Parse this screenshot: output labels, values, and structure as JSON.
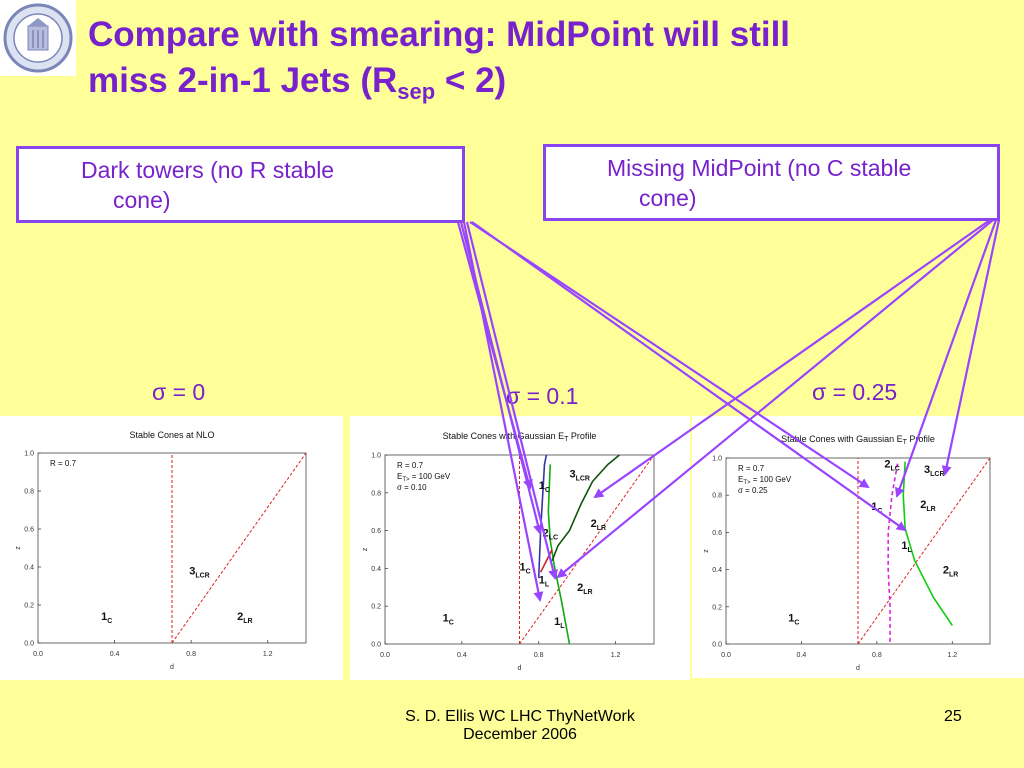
{
  "slide": {
    "title_line1": "Compare with smearing:  MidPoint will still",
    "title_line2": "miss 2-in-1 Jets  (R",
    "title_sub": "sep",
    "title_end": " < 2)",
    "box_left_line1": "Dark towers (no R stable",
    "box_left_line2": "cone)",
    "box_right_line1": "Missing MidPoint (no C stable",
    "box_right_line2": "cone)",
    "sigma_labels": [
      "σ = 0",
      "σ = 0.1",
      "σ = 0.25"
    ],
    "footer_line1": "S. D. Ellis   WC LHC ThyNetWork",
    "footer_line2": "December 2006",
    "page_number": "25"
  },
  "colors": {
    "accent": "#7722cc",
    "arrow": "#9944ff",
    "background": "#ffff99"
  },
  "chart_data": [
    {
      "type": "line",
      "title": "Stable Cones at NLO",
      "xlabel": "d",
      "ylabel": "z",
      "xlim": [
        0,
        1.4
      ],
      "ylim": [
        0,
        1.0
      ],
      "xticks": [
        "0.0",
        "0.4",
        "0.8",
        "1.2"
      ],
      "yticks": [
        "0.0",
        "0.2",
        "0.4",
        "0.6",
        "0.8",
        "1.0"
      ],
      "params": [
        "R = 0.7"
      ],
      "region_labels": [
        {
          "main": "1",
          "sub": "C",
          "x": 0.33,
          "y": 0.12
        },
        {
          "main": "3",
          "sub": "LCR",
          "x": 0.79,
          "y": 0.36
        },
        {
          "main": "2",
          "sub": "LR",
          "x": 1.04,
          "y": 0.12
        }
      ],
      "series": [
        {
          "kind": "vline",
          "color": "#dd2222",
          "x": 0.7
        },
        {
          "kind": "line",
          "color": "#dd2222",
          "points": [
            [
              0.7,
              0.0
            ],
            [
              1.4,
              1.0
            ]
          ]
        }
      ]
    },
    {
      "type": "line",
      "title": "Stable Cones with Gaussian E",
      "title_sub": "T",
      "title_end": " Profile",
      "xlabel": "d",
      "ylabel": "z",
      "xlim": [
        0,
        1.4
      ],
      "ylim": [
        0,
        1.0
      ],
      "xticks": [
        "0.0",
        "0.4",
        "0.8",
        "1.2"
      ],
      "yticks": [
        "0.0",
        "0.2",
        "0.4",
        "0.6",
        "0.8",
        "1.0"
      ],
      "params": [
        "R = 0.7",
        "E<sub>T&gt;</sub> = 100 GeV",
        "σ = 0.10"
      ],
      "region_labels": [
        {
          "main": "1",
          "sub": "C",
          "x": 0.3,
          "y": 0.12
        },
        {
          "main": "1",
          "sub": "C",
          "x": 0.8,
          "y": 0.82
        },
        {
          "main": "3",
          "sub": "LCR",
          "x": 0.96,
          "y": 0.88
        },
        {
          "main": "2",
          "sub": "LR",
          "x": 1.07,
          "y": 0.62
        },
        {
          "main": "2",
          "sub": "LC",
          "x": 0.82,
          "y": 0.57
        },
        {
          "main": "1",
          "sub": "C",
          "x": 0.7,
          "y": 0.39
        },
        {
          "main": "1",
          "sub": "L",
          "x": 0.8,
          "y": 0.32
        },
        {
          "main": "2",
          "sub": "LR",
          "x": 1.0,
          "y": 0.28
        },
        {
          "main": "1",
          "sub": "L",
          "x": 0.88,
          "y": 0.1
        }
      ],
      "series": [
        {
          "kind": "vline",
          "color": "#dd2222",
          "x": 0.7
        },
        {
          "kind": "line",
          "color": "#dd2222",
          "points": [
            [
              0.7,
              0.0
            ],
            [
              1.4,
              1.0
            ]
          ]
        },
        {
          "kind": "curve",
          "color": "#11aa11",
          "points": [
            [
              0.86,
              0.95
            ],
            [
              0.85,
              0.7
            ],
            [
              0.86,
              0.55
            ],
            [
              0.88,
              0.42
            ],
            [
              0.92,
              0.22
            ],
            [
              0.96,
              0.0
            ]
          ]
        },
        {
          "kind": "curve",
          "color": "#115511",
          "points": [
            [
              0.87,
              0.44
            ],
            [
              0.9,
              0.52
            ],
            [
              0.96,
              0.6
            ],
            [
              1.02,
              0.74
            ],
            [
              1.08,
              0.86
            ],
            [
              1.16,
              0.95
            ],
            [
              1.22,
              1.0
            ]
          ]
        },
        {
          "kind": "curve",
          "color": "#3333aa",
          "points": [
            [
              0.8,
              0.35
            ],
            [
              0.81,
              0.6
            ],
            [
              0.83,
              0.95
            ],
            [
              0.84,
              1.0
            ]
          ]
        },
        {
          "kind": "curve",
          "color": "#cc2222",
          "points": [
            [
              0.81,
              0.38
            ],
            [
              0.84,
              0.44
            ],
            [
              0.87,
              0.5
            ]
          ]
        }
      ]
    },
    {
      "type": "line",
      "title": "Stable Cones with Gaussian E",
      "title_sub": "T",
      "title_end": " Profile",
      "xlabel": "d",
      "ylabel": "z",
      "xlim": [
        0,
        1.4
      ],
      "ylim": [
        0,
        1.0
      ],
      "xticks": [
        "0.0",
        "0.4",
        "0.8",
        "1.2"
      ],
      "yticks": [
        "0.0",
        "0.2",
        "0.4",
        "0.6",
        "0.8",
        "1.0"
      ],
      "params": [
        "R = 0.7",
        "E<sub>T&gt;</sub> = 100 GeV",
        "σ = 0.25"
      ],
      "region_labels": [
        {
          "main": "1",
          "sub": "C",
          "x": 0.33,
          "y": 0.12
        },
        {
          "main": "2",
          "sub": "LC",
          "x": 0.84,
          "y": 0.95
        },
        {
          "main": "3",
          "sub": "LCR",
          "x": 1.05,
          "y": 0.92
        },
        {
          "main": "1",
          "sub": "C",
          "x": 0.77,
          "y": 0.72
        },
        {
          "main": "2",
          "sub": "LR",
          "x": 1.03,
          "y": 0.73
        },
        {
          "main": "1",
          "sub": "L",
          "x": 0.93,
          "y": 0.51
        },
        {
          "main": "2",
          "sub": "LR",
          "x": 1.15,
          "y": 0.38
        }
      ],
      "series": [
        {
          "kind": "vline",
          "color": "#dd2222",
          "x": 0.7
        },
        {
          "kind": "line",
          "color": "#dd2222",
          "points": [
            [
              0.7,
              0.0
            ],
            [
              1.4,
              1.0
            ]
          ]
        },
        {
          "kind": "curve",
          "color": "#11cc11",
          "points": [
            [
              0.95,
              0.98
            ],
            [
              0.94,
              0.8
            ],
            [
              0.95,
              0.62
            ],
            [
              1.0,
              0.45
            ],
            [
              1.1,
              0.25
            ],
            [
              1.2,
              0.1
            ]
          ]
        },
        {
          "kind": "dashed",
          "color": "#dd22dd",
          "points": [
            [
              0.91,
              0.97
            ],
            [
              0.88,
              0.8
            ],
            [
              0.86,
              0.6
            ],
            [
              0.86,
              0.4
            ],
            [
              0.87,
              0.2
            ],
            [
              0.87,
              0.0
            ]
          ]
        }
      ]
    }
  ]
}
